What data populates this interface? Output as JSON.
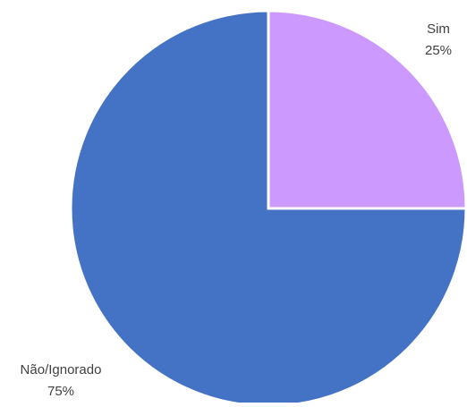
{
  "chart_data": {
    "type": "pie",
    "title": "",
    "slices": [
      {
        "label": "Sim",
        "value": 25,
        "display": "25%",
        "color": "#CC99FF"
      },
      {
        "label": "Não/Ignorado",
        "value": 75,
        "display": "75%",
        "color": "#4472C4"
      }
    ],
    "legend": "none",
    "data_labels": "outside"
  }
}
